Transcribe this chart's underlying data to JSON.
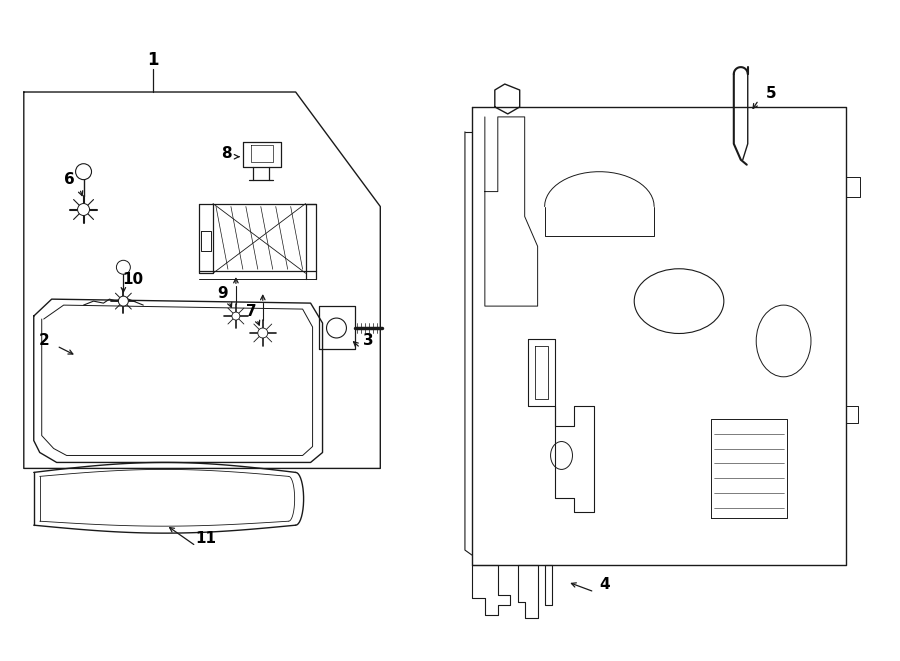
{
  "bg_color": "#ffffff",
  "lc": "#1a1a1a",
  "lw": 1.0,
  "fig_width": 9.0,
  "fig_height": 6.61,
  "dpi": 100
}
